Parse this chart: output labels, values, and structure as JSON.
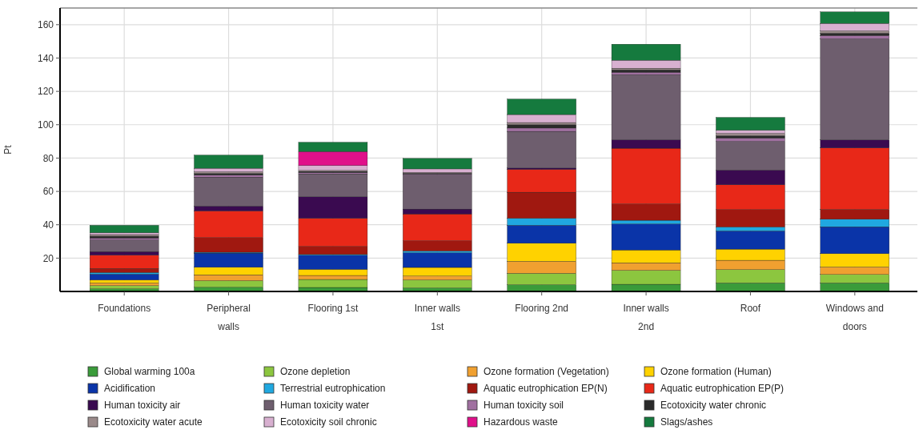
{
  "chart_data": {
    "type": "bar",
    "stacked": true,
    "ylabel": "Pt",
    "categories": [
      "Foundations",
      "Peripheral walls",
      "Flooring 1st",
      "Inner walls 1st",
      "Flooring 2nd",
      "Inner walls 2nd",
      "Roof",
      "Windows and doors"
    ],
    "ylim": [
      0,
      170
    ],
    "yticks": [
      20,
      40,
      60,
      80,
      100,
      120,
      140,
      160
    ],
    "grid": true,
    "legend": "bottom",
    "series": [
      {
        "name": "Global warming 100a",
        "color": "#3a9b3a",
        "values": [
          1.6,
          2.5,
          2.4,
          2.1,
          4.0,
          4.3,
          5.1,
          5.1
        ]
      },
      {
        "name": "Ozone depletion",
        "color": "#8cc63f",
        "values": [
          1.9,
          4.0,
          4.8,
          4.8,
          6.9,
          8.4,
          8.0,
          5.1
        ]
      },
      {
        "name": "Ozone formation (Vegetation)",
        "color": "#f0a030",
        "values": [
          1.6,
          3.5,
          2.4,
          2.4,
          7.2,
          4.5,
          5.6,
          4.5
        ]
      },
      {
        "name": "Ozone formation (Human)",
        "color": "#ffd200",
        "values": [
          1.8,
          4.5,
          3.7,
          5.1,
          10.8,
          7.7,
          6.7,
          8.0
        ]
      },
      {
        "name": "Acidification",
        "color": "#0a34a8",
        "values": [
          3.5,
          8.5,
          8.4,
          8.8,
          10.8,
          15.6,
          10.9,
          16.1
        ]
      },
      {
        "name": "Terrestrial eutrophication",
        "color": "#20a8e0",
        "values": [
          1.0,
          0.5,
          0.5,
          1.1,
          4.2,
          2.2,
          2.4,
          4.5
        ]
      },
      {
        "name": "Aquatic eutrophication EP(N)",
        "color": "#a01810",
        "values": [
          2.4,
          8.8,
          4.8,
          6.1,
          15.6,
          9.8,
          10.4,
          5.9
        ]
      },
      {
        "name": "Aquatic eutrophication EP(P)",
        "color": "#e82818",
        "values": [
          8.0,
          16.0,
          16.9,
          16.1,
          13.7,
          33.4,
          14.9,
          36.9
        ]
      },
      {
        "name": "Human toxicity air",
        "color": "#3a0a50",
        "values": [
          2.1,
          2.9,
          12.9,
          2.9,
          0.8,
          5.1,
          8.8,
          4.8
        ]
      },
      {
        "name": "Human toxicity water",
        "color": "#6e5e6e",
        "values": [
          7.0,
          17.4,
          13.7,
          20.4,
          22.0,
          39.0,
          17.2,
          60.6
        ]
      },
      {
        "name": "Human toxicity soil",
        "color": "#a070a0",
        "values": [
          1.2,
          1.2,
          0.8,
          0.6,
          2.0,
          1.5,
          2.0,
          2.0
        ]
      },
      {
        "name": "Ecotoxicity water chronic",
        "color": "#2a2a2a",
        "values": [
          1.0,
          1.0,
          0.7,
          0.5,
          2.0,
          1.4,
          1.4,
          1.4
        ]
      },
      {
        "name": "Ecotoxicity water acute",
        "color": "#9a8a8a",
        "values": [
          1.0,
          1.0,
          0.6,
          0.5,
          1.3,
          1.0,
          1.4,
          1.4
        ]
      },
      {
        "name": "Ecotoxicity soil chronic",
        "color": "#d8b0d0",
        "values": [
          1.1,
          2.1,
          2.9,
          2.1,
          4.8,
          4.8,
          1.9,
          4.5
        ]
      },
      {
        "name": "Hazardous waste",
        "color": "#e0108a",
        "values": [
          0,
          0,
          8.4,
          0,
          0,
          0,
          0,
          0
        ]
      },
      {
        "name": "Slags/ashes",
        "color": "#157a3e",
        "values": [
          4.5,
          7.9,
          5.6,
          6.3,
          9.3,
          9.6,
          7.7,
          6.9
        ]
      }
    ]
  }
}
